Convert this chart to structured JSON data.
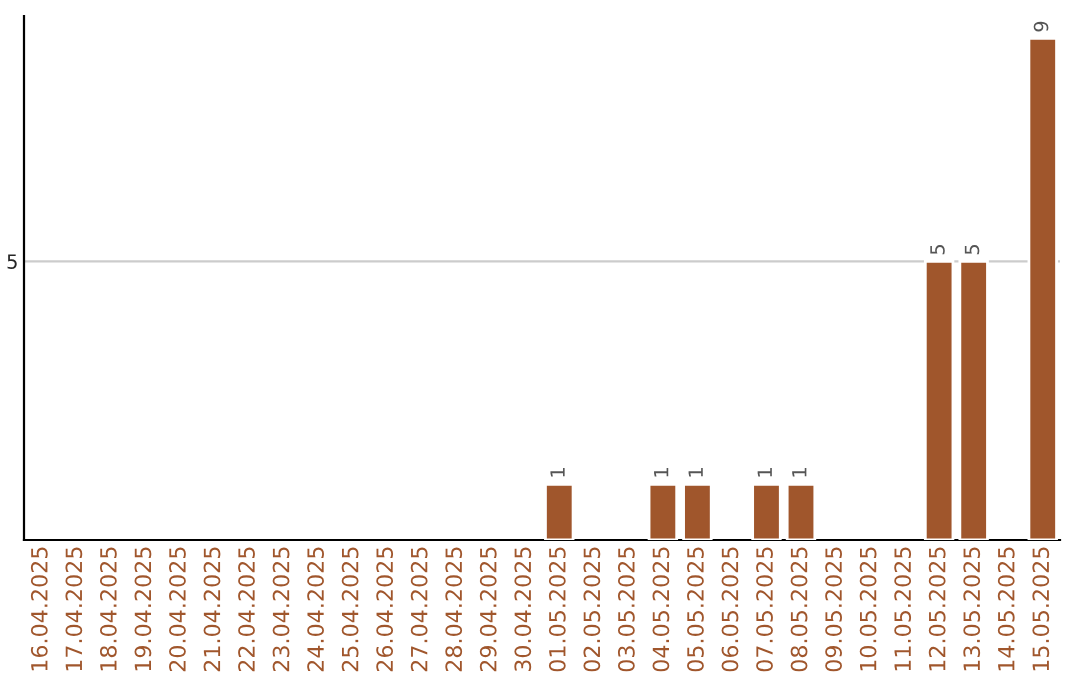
{
  "chart_data": {
    "type": "bar",
    "ylim": [
      0,
      9.4
    ],
    "yticks": [
      5
    ],
    "grid": "y",
    "categories": [
      "16.04.2025",
      "17.04.2025",
      "18.04.2025",
      "19.04.2025",
      "20.04.2025",
      "21.04.2025",
      "22.04.2025",
      "23.04.2025",
      "24.04.2025",
      "25.04.2025",
      "26.04.2025",
      "27.04.2025",
      "28.04.2025",
      "29.04.2025",
      "30.04.2025",
      "01.05.2025",
      "02.05.2025",
      "03.05.2025",
      "04.05.2025",
      "05.05.2025",
      "06.05.2025",
      "07.05.2025",
      "08.05.2025",
      "09.05.2025",
      "10.05.2025",
      "11.05.2025",
      "12.05.2025",
      "13.05.2025",
      "14.05.2025",
      "15.05.2025"
    ],
    "values": [
      null,
      null,
      null,
      null,
      null,
      null,
      null,
      null,
      null,
      null,
      null,
      null,
      null,
      null,
      null,
      1,
      null,
      null,
      1,
      1,
      null,
      1,
      1,
      null,
      null,
      null,
      5,
      5,
      null,
      9
    ],
    "data_labels": true,
    "color": "#a0562c"
  }
}
